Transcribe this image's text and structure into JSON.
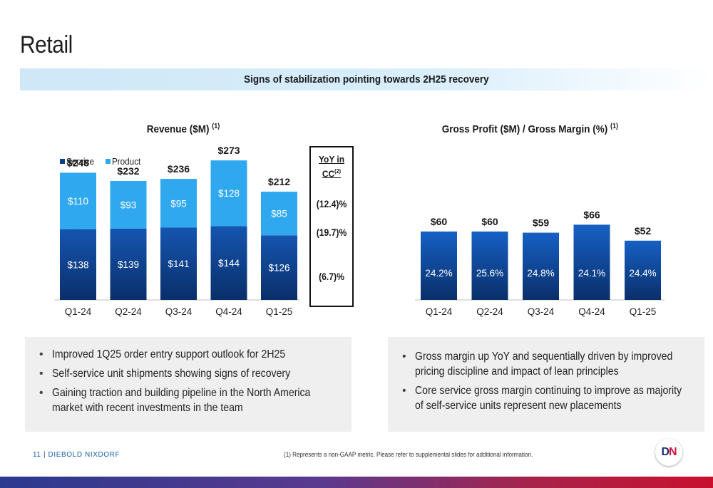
{
  "page": {
    "title": "Retail",
    "banner": "Signs of stabilization pointing towards 2H25 recovery"
  },
  "chart_data": [
    {
      "type": "bar",
      "stacked": true,
      "title": "Revenue ($M)",
      "title_sup": "(1)",
      "categories": [
        "Q1-24",
        "Q2-24",
        "Q3-24",
        "Q4-24",
        "Q1-25"
      ],
      "series": [
        {
          "name": "Service",
          "values": [
            138,
            139,
            141,
            144,
            126
          ],
          "labels": [
            "$138",
            "$139",
            "$141",
            "$144",
            "$126"
          ],
          "color": "#0d3f8c"
        },
        {
          "name": "Product",
          "values": [
            110,
            93,
            95,
            128,
            85
          ],
          "labels": [
            "$110",
            "$93",
            "$95",
            "$128",
            "$85"
          ],
          "color": "#2fa8f0"
        }
      ],
      "totals": [
        "$248",
        "$232",
        "$236",
        "$273",
        "$212"
      ],
      "total_values": [
        248,
        232,
        236,
        273,
        212
      ],
      "legend": "top-left",
      "ylim": [
        0,
        300
      ]
    },
    {
      "type": "bar",
      "title": "Gross Profit ($M) / Gross Margin (%)",
      "title_sup": "(1)",
      "categories": [
        "Q1-24",
        "Q2-24",
        "Q3-24",
        "Q4-24",
        "Q1-25"
      ],
      "series": [
        {
          "name": "Gross Profit",
          "values": [
            60,
            60,
            59,
            66,
            52
          ],
          "labels": [
            "$60",
            "$60",
            "$59",
            "$66",
            "$52"
          ],
          "color": "#0d3f8c"
        }
      ],
      "margins": [
        "24.2%",
        "25.6%",
        "24.8%",
        "24.1%",
        "24.4%"
      ],
      "ylim": [
        0,
        80
      ]
    }
  ],
  "yoy": {
    "heading_line1": "YoY in",
    "heading_line2": "CC",
    "heading_sup": "(2)",
    "total": "(12.4)%",
    "product": "(19.7)%",
    "service": "(6.7)%"
  },
  "notes_left": [
    "Improved 1Q25 order entry support outlook for 2H25",
    "Self-service unit shipments showing signs of recovery",
    "Gaining traction and building pipeline in the North America market with recent investments in the team"
  ],
  "notes_right": [
    "Gross margin up YoY and sequentially driven by improved pricing discipline and impact of lean principles",
    "Core service gross margin continuing to improve as majority of self-service units represent new placements"
  ],
  "footer": {
    "page_label": "11 | DIEBOLD NIXDORF",
    "footnote": "(1)    Represents a non-GAAP metric.  Please refer to supplemental slides for additional information.",
    "logo_d": "D",
    "logo_n": "N"
  }
}
